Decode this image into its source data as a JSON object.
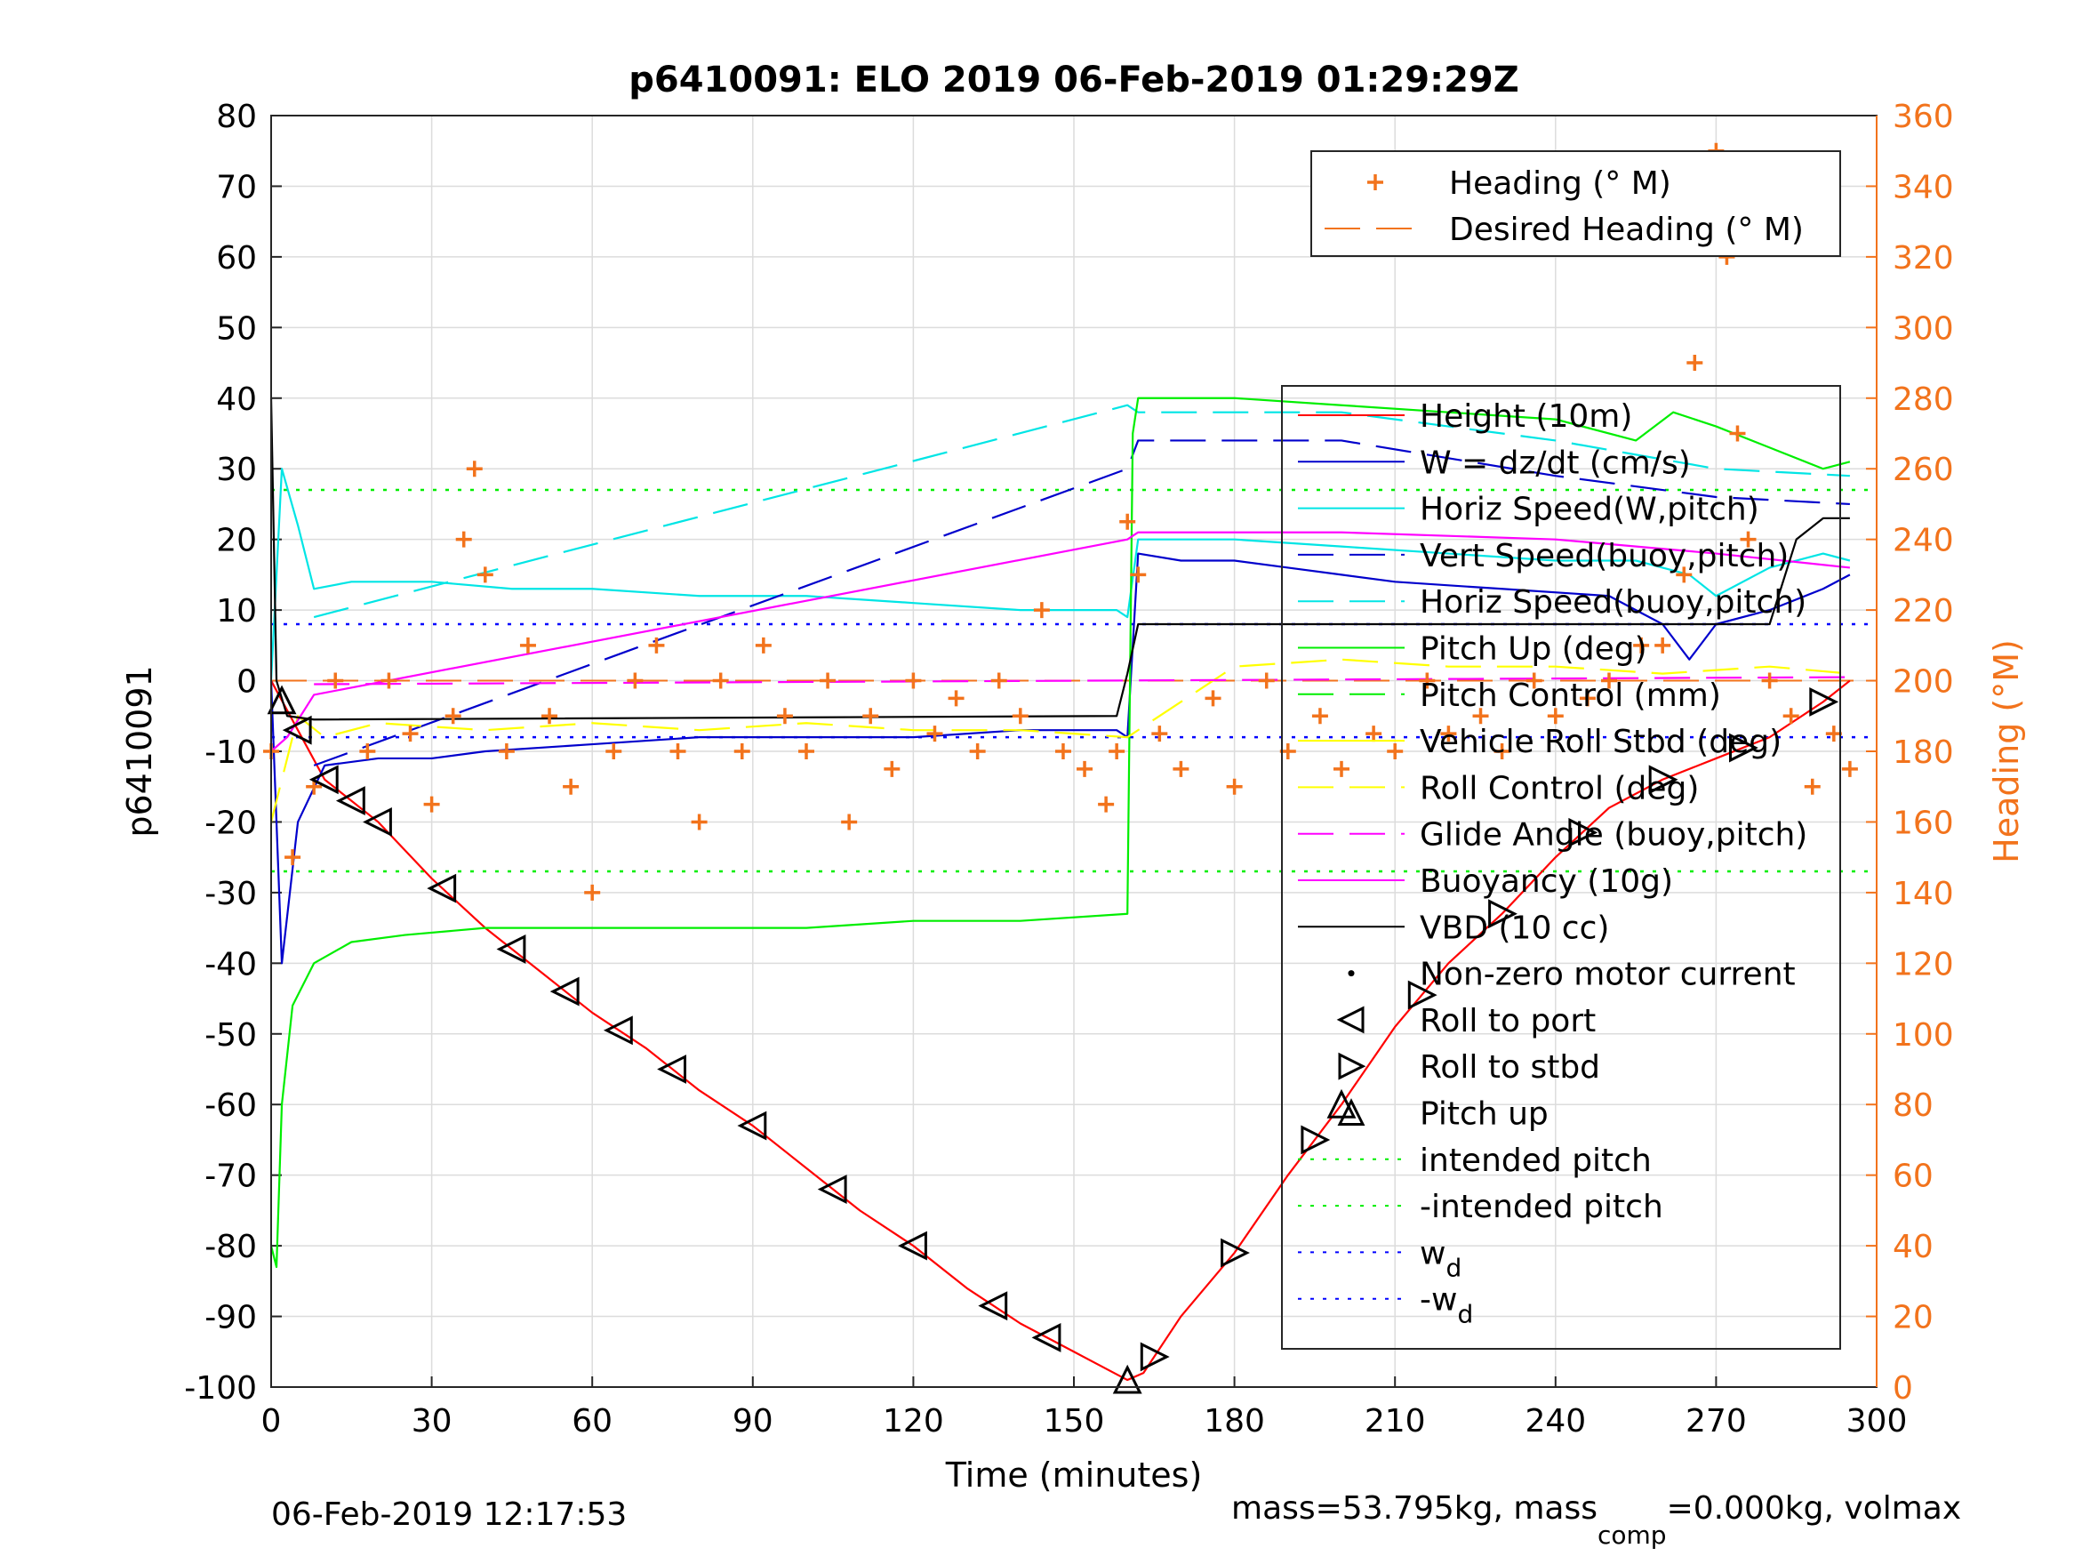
{
  "chart_data": {
    "type": "line",
    "title": "p6410091: ELO 2019 06-Feb-2019 01:29:29Z",
    "xlabel": "Time (minutes)",
    "ylabel": "p6410091",
    "ylabel_right": "Heading (°M)",
    "xlim": [
      0,
      300
    ],
    "ylim": [
      -100,
      80
    ],
    "ylim_right": [
      0,
      360
    ],
    "xticks": [
      "0",
      "30",
      "60",
      "90",
      "120",
      "150",
      "180",
      "210",
      "240",
      "270",
      "300"
    ],
    "yticks": [
      "80",
      "70",
      "60",
      "50",
      "40",
      "30",
      "20",
      "10",
      "0",
      "-10",
      "-20",
      "-30",
      "-40",
      "-50",
      "-60",
      "-70",
      "-80",
      "-90",
      "-100"
    ],
    "yticks_right": [
      "360",
      "340",
      "320",
      "300",
      "280",
      "260",
      "240",
      "220",
      "200",
      "180",
      "160",
      "140",
      "120",
      "100",
      "80",
      "60",
      "40",
      "20",
      "0"
    ],
    "grid": true,
    "legend_heading": [
      {
        "label": "Heading (° M)",
        "color": "#f2731c",
        "style": "plus"
      },
      {
        "label": "Desired Heading (° M)",
        "color": "#f2731c",
        "style": "dashed"
      }
    ],
    "legend_main": [
      {
        "label": "Height (10m)",
        "color": "#ff0000",
        "style": "solid"
      },
      {
        "label": "W = dz/dt (cm/s)",
        "color": "#0000cc",
        "style": "solid"
      },
      {
        "label": "Horiz Speed(W,pitch)",
        "color": "#00e5e5",
        "style": "solid"
      },
      {
        "label": "Vert Speed(buoy,pitch)",
        "color": "#0000cc",
        "style": "dashed"
      },
      {
        "label": "Horiz Speed(buoy,pitch)",
        "color": "#00e5e5",
        "style": "dashed"
      },
      {
        "label": "Pitch Up (deg)",
        "color": "#00ee00",
        "style": "solid"
      },
      {
        "label": "Pitch Control (mm)",
        "color": "#00ee00",
        "style": "dashed"
      },
      {
        "label": "Vehicle Roll Stbd (deg)",
        "color": "#ffff00",
        "style": "solid"
      },
      {
        "label": "Roll Control (deg)",
        "color": "#ffff00",
        "style": "dashed"
      },
      {
        "label": "Glide Angle (buoy,pitch)",
        "color": "#ff00ff",
        "style": "dashed"
      },
      {
        "label": "Buoyancy (10g)",
        "color": "#ff00ff",
        "style": "solid"
      },
      {
        "label": "VBD (10 cc)",
        "color": "#000000",
        "style": "solid"
      },
      {
        "label": "Non-zero motor current",
        "color": "#000000",
        "style": "dot"
      },
      {
        "label": "Roll to port",
        "color": "#000000",
        "style": "tri-left"
      },
      {
        "label": "Roll to stbd",
        "color": "#000000",
        "style": "tri-right"
      },
      {
        "label": "Pitch up",
        "color": "#000000",
        "style": "tri-up"
      },
      {
        "label": "intended pitch",
        "color": "#00ee00",
        "style": "dotted"
      },
      {
        "label": "-intended pitch",
        "color": "#00ee00",
        "style": "dotted"
      },
      {
        "label": "w",
        "sub": "d",
        "color": "#0000ff",
        "style": "dotted"
      },
      {
        "label": "-w",
        "sub": "d",
        "color": "#0000ff",
        "style": "dotted"
      }
    ],
    "series": [
      {
        "name": "Height (10m)",
        "color": "#ff0000",
        "x": [
          0,
          5,
          10,
          20,
          30,
          40,
          50,
          60,
          70,
          80,
          90,
          100,
          110,
          120,
          130,
          140,
          150,
          160,
          163,
          170,
          180,
          190,
          200,
          210,
          220,
          230,
          240,
          250,
          260,
          270,
          280,
          290,
          295
        ],
        "y": [
          0,
          -7,
          -14,
          -20,
          -28,
          -35,
          -41,
          -47,
          -52,
          -58,
          -63,
          -69,
          -75,
          -80,
          -86,
          -91,
          -95,
          -99,
          -98,
          -90,
          -81,
          -70,
          -60,
          -49,
          -40,
          -33,
          -25,
          -18,
          -14,
          -11,
          -8,
          -3,
          0
        ]
      },
      {
        "name": "W = dz/dt (cm/s)",
        "color": "#0000cc",
        "x": [
          0,
          2,
          5,
          10,
          20,
          30,
          40,
          60,
          80,
          100,
          120,
          140,
          158,
          160,
          162,
          170,
          180,
          190,
          200,
          210,
          230,
          250,
          260,
          265,
          270,
          280,
          290,
          295
        ],
        "y": [
          0,
          -40,
          -20,
          -12,
          -11,
          -11,
          -10,
          -9,
          -8,
          -8,
          -8,
          -7,
          -7,
          -8,
          18,
          17,
          17,
          16,
          15,
          14,
          13,
          12,
          8,
          3,
          8,
          10,
          13,
          15
        ]
      },
      {
        "name": "Horiz Speed(W,pitch)",
        "color": "#00e5e5",
        "x": [
          0,
          2,
          5,
          8,
          15,
          30,
          45,
          60,
          80,
          100,
          120,
          140,
          158,
          160,
          162,
          180,
          200,
          220,
          240,
          255,
          265,
          270,
          280,
          290,
          295
        ],
        "y": [
          0,
          30,
          22,
          13,
          14,
          14,
          13,
          13,
          12,
          12,
          11,
          10,
          10,
          9,
          20,
          20,
          19,
          18,
          17,
          17,
          15,
          12,
          16,
          18,
          17
        ]
      },
      {
        "name": "Vert Speed(buoy,pitch)",
        "color": "#0000cc",
        "x": [
          8,
          160,
          162,
          200,
          240,
          270,
          295
        ],
        "y": [
          -12,
          30,
          34,
          34,
          29,
          26,
          25
        ]
      },
      {
        "name": "Horiz Speed(buoy,pitch)",
        "color": "#00e5e5",
        "x": [
          8,
          160,
          162,
          200,
          240,
          270,
          295
        ],
        "y": [
          9,
          39,
          38,
          38,
          34,
          30,
          29
        ]
      },
      {
        "name": "Pitch Up (deg)",
        "color": "#00ee00",
        "x": [
          0,
          1,
          2,
          4,
          8,
          15,
          25,
          40,
          60,
          80,
          100,
          120,
          140,
          160,
          161,
          162,
          170,
          180,
          200,
          220,
          240,
          255,
          262,
          270,
          280,
          290,
          295
        ],
        "y": [
          -80,
          -83,
          -60,
          -46,
          -40,
          -37,
          -36,
          -35,
          -35,
          -35,
          -35,
          -34,
          -34,
          -33,
          35,
          40,
          40,
          40,
          39,
          38,
          37,
          34,
          38,
          36,
          33,
          30,
          31
        ]
      },
      {
        "name": "Roll Control (deg)",
        "color": "#ffff00",
        "x": [
          0,
          5,
          10,
          20,
          40,
          60,
          80,
          100,
          120,
          140,
          160,
          180,
          200,
          220,
          240,
          260,
          280,
          295
        ],
        "y": [
          -20,
          -5,
          -8,
          -6,
          -7,
          -6,
          -7,
          -6,
          -7,
          -7,
          -8,
          2,
          3,
          2,
          2,
          1,
          2,
          1
        ]
      },
      {
        "name": "Glide Angle (buoy,pitch)",
        "color": "#ff00ff",
        "x": [
          8,
          295
        ],
        "y": [
          -0.5,
          0.5
        ]
      },
      {
        "name": "Buoyancy (10g)",
        "color": "#ff00ff",
        "x": [
          0,
          3,
          8,
          160,
          162,
          200,
          240,
          270,
          295
        ],
        "y": [
          -10,
          -8,
          -2,
          20,
          21,
          21,
          20,
          18,
          16
        ]
      },
      {
        "name": "VBD (10 cc)",
        "color": "#000000",
        "x": [
          0,
          1,
          3,
          8,
          158,
          160,
          162,
          280,
          285,
          290,
          295
        ],
        "y": [
          40,
          0,
          -5,
          -5.5,
          -5,
          1,
          8,
          8,
          20,
          23,
          23
        ]
      }
    ],
    "heading_series": {
      "name": "Heading (° M)",
      "color": "#f2731c",
      "x": [
        0,
        4,
        8,
        12,
        18,
        22,
        26,
        30,
        34,
        36,
        38,
        40,
        44,
        48,
        52,
        56,
        60,
        64,
        68,
        72,
        76,
        80,
        84,
        88,
        92,
        96,
        100,
        104,
        108,
        112,
        116,
        120,
        124,
        128,
        132,
        136,
        140,
        144,
        148,
        152,
        156,
        158,
        160,
        162,
        166,
        170,
        176,
        180,
        186,
        190,
        196,
        200,
        206,
        210,
        216,
        220,
        226,
        230,
        236,
        240,
        246,
        250,
        256,
        260,
        264,
        266,
        268,
        270,
        272,
        274,
        276,
        280,
        284,
        288,
        292,
        295
      ],
      "y": [
        180,
        150,
        170,
        200,
        180,
        200,
        185,
        165,
        190,
        240,
        260,
        230,
        180,
        210,
        190,
        170,
        140,
        180,
        200,
        210,
        180,
        160,
        200,
        180,
        210,
        190,
        180,
        200,
        160,
        190,
        175,
        200,
        185,
        195,
        180,
        200,
        190,
        220,
        180,
        175,
        165,
        180,
        245,
        230,
        185,
        175,
        195,
        170,
        200,
        180,
        190,
        175,
        185,
        180,
        200,
        185,
        190,
        180,
        200,
        190,
        195,
        200,
        210,
        210,
        230,
        290,
        330,
        350,
        320,
        270,
        240,
        200,
        190,
        170,
        185,
        175
      ]
    },
    "desired_heading": {
      "name": "Desired Heading (° M)",
      "value": 200
    },
    "intended_pitch": 27,
    "w_d": 8,
    "markers_roll_port_x": [
      5,
      10,
      15,
      20,
      32,
      45,
      55,
      65,
      75,
      90,
      105,
      120,
      135,
      145
    ],
    "markers_roll_stbd_x": [
      165,
      180,
      195,
      215,
      230,
      245,
      260,
      275,
      290
    ],
    "markers_pitch_up_x": [
      2,
      160,
      200
    ],
    "date_stamp": "06-Feb-2019 12:17:53",
    "footer_prefix": "mass=53.795kg, mass",
    "footer_sub": "comp",
    "footer_suffix": "=0.000kg, volmax"
  }
}
